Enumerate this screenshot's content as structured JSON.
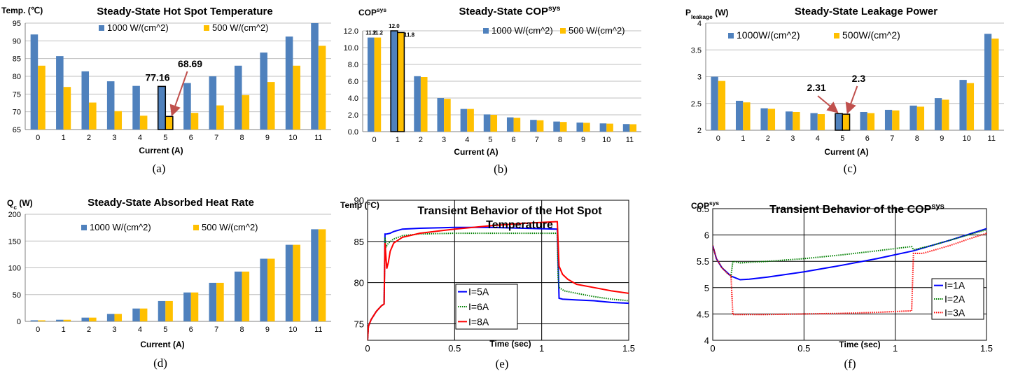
{
  "chart_data": [
    {
      "type": "bar",
      "title": "Steady-State Hot Spot Temperature",
      "ylabel": "Temp. (℃)",
      "xlabel": "Current (A)",
      "caption": "(a)",
      "categories": [
        "0",
        "1",
        "2",
        "3",
        "4",
        "5",
        "6",
        "7",
        "8",
        "9",
        "10",
        "11"
      ],
      "ylim": [
        65,
        95
      ],
      "yticks": [
        "65",
        "70",
        "75",
        "80",
        "85",
        "90",
        "95"
      ],
      "grid": true,
      "legend_position": "top",
      "series": [
        {
          "name": "1000 W/(cm^2)",
          "color": "#4F81BD",
          "values": [
            91.8,
            85.7,
            81.4,
            78.6,
            77.3,
            77.16,
            78.1,
            80.0,
            83.0,
            86.7,
            91.2,
            95.0
          ]
        },
        {
          "name": "500 W/(cm^2)",
          "color": "#FFC000",
          "values": [
            83.0,
            77.0,
            72.6,
            70.2,
            68.9,
            68.69,
            69.7,
            71.8,
            74.7,
            78.4,
            83.0,
            88.6
          ]
        }
      ],
      "highlight_index": 5,
      "annotations": [
        {
          "text": "77.16",
          "series": 0,
          "index": 5
        },
        {
          "text": "68.69",
          "series": 1,
          "index": 5
        }
      ]
    },
    {
      "type": "bar",
      "title": "Steady-State COP",
      "title_sup": "sys",
      "ylabel": "COP",
      "ylabel_sup": "sys",
      "xlabel": "Current (A)",
      "caption": "(b)",
      "categories": [
        "0",
        "1",
        "2",
        "3",
        "4",
        "5",
        "6",
        "7",
        "8",
        "9",
        "10",
        "11"
      ],
      "ylim": [
        0,
        12
      ],
      "yticks": [
        "0.0",
        "2.0",
        "4.0",
        "6.0",
        "8.0",
        "10.0",
        "12.0"
      ],
      "grid": true,
      "legend_position": "top-right",
      "series": [
        {
          "name": "1000 W/(cm^2)",
          "color": "#4F81BD",
          "values": [
            11.2,
            12.0,
            6.6,
            4.0,
            2.7,
            2.05,
            1.7,
            1.4,
            1.2,
            1.08,
            0.98,
            0.9
          ]
        },
        {
          "name": "500 W/(cm^2)",
          "color": "#FFC000",
          "values": [
            11.2,
            11.8,
            6.5,
            3.9,
            2.7,
            2.0,
            1.65,
            1.35,
            1.15,
            1.05,
            0.95,
            0.88
          ]
        }
      ],
      "highlight_index": 1,
      "data_labels": [
        {
          "text": "11.2",
          "series": 0,
          "index": 0
        },
        {
          "text": "11.2",
          "series": 1,
          "index": 0
        },
        {
          "text": "12.0",
          "series": 0,
          "index": 1
        },
        {
          "text": "11.8",
          "series": 1,
          "index": 1
        }
      ]
    },
    {
      "type": "bar",
      "title": "Steady-State Leakage Power",
      "ylabel": "P",
      "ylabel_sub": "leakage",
      "ylabel_rest": " (W)",
      "xlabel": "Current (A)",
      "caption": "(c)",
      "categories": [
        "0",
        "1",
        "2",
        "3",
        "4",
        "5",
        "6",
        "7",
        "8",
        "9",
        "10",
        "11"
      ],
      "ylim": [
        2,
        4
      ],
      "yticks": [
        "2",
        "2.5",
        "3",
        "3.5",
        "4"
      ],
      "grid": true,
      "legend_position": "top",
      "series": [
        {
          "name": "1000W/(cm^2)",
          "color": "#4F81BD",
          "values": [
            3.0,
            2.55,
            2.41,
            2.35,
            2.32,
            2.31,
            2.34,
            2.38,
            2.46,
            2.6,
            2.94,
            3.8
          ]
        },
        {
          "name": "500W/(cm^2)",
          "color": "#FFC000",
          "values": [
            2.92,
            2.52,
            2.4,
            2.34,
            2.3,
            2.3,
            2.32,
            2.37,
            2.44,
            2.57,
            2.88,
            3.71
          ]
        }
      ],
      "highlight_index": 5,
      "annotations": [
        {
          "text": "2.31",
          "series": 0,
          "index": 5
        },
        {
          "text": "2.3",
          "series": 1,
          "index": 5
        }
      ]
    },
    {
      "type": "bar",
      "title": "Steady-State Absorbed Heat Rate",
      "ylabel": "Q",
      "ylabel_sub": "c",
      "ylabel_rest": " (W)",
      "xlabel": "Current (A)",
      "caption": "(d)",
      "categories": [
        "0",
        "1",
        "2",
        "3",
        "4",
        "5",
        "6",
        "7",
        "8",
        "9",
        "10",
        "11"
      ],
      "ylim": [
        0,
        200
      ],
      "yticks": [
        "0",
        "50",
        "100",
        "150",
        "200"
      ],
      "grid": true,
      "legend_position": "top",
      "series": [
        {
          "name": "1000 W/(cm^2)",
          "color": "#4F81BD",
          "values": [
            2,
            3,
            7,
            14,
            24,
            38,
            54,
            72,
            93,
            117,
            143,
            172
          ]
        },
        {
          "name": "500 W/(cm^2)",
          "color": "#FFC000",
          "values": [
            2,
            3,
            7,
            14,
            24,
            38,
            54,
            72,
            93,
            117,
            143,
            172
          ]
        }
      ]
    },
    {
      "type": "line",
      "title_line1": "Transient Behavior of the Hot Spot",
      "title_line2": "Temperature",
      "ylabel": "Temp (°C)",
      "xlabel": "Time (sec)",
      "caption": "(e)",
      "xlim": [
        0,
        1.5
      ],
      "ylim": [
        73,
        90
      ],
      "xticks": [
        "0",
        "0.5",
        "1",
        "1.5"
      ],
      "yticks": [
        "75",
        "80",
        "85",
        "90"
      ],
      "grid": true,
      "legend_position": "center-left",
      "series": [
        {
          "name": "I=5A",
          "color": "#0000FF",
          "style": "solid",
          "x": [
            0,
            0.005,
            0.02,
            0.05,
            0.08,
            0.095,
            0.1,
            0.11,
            0.13,
            0.15,
            0.2,
            0.3,
            0.5,
            0.7,
            0.9,
            1.09,
            1.1,
            1.12,
            1.2,
            1.3,
            1.4,
            1.5
          ],
          "y": [
            73.0,
            74.7,
            75.5,
            76.5,
            77.2,
            77.4,
            85.9,
            85.9,
            86.0,
            86.2,
            86.5,
            86.6,
            86.7,
            86.7,
            86.6,
            86.5,
            78.1,
            78.0,
            77.9,
            77.8,
            77.6,
            77.5
          ]
        },
        {
          "name": "I=6A",
          "color": "#008000",
          "style": "dotted",
          "x": [
            0,
            0.005,
            0.02,
            0.05,
            0.08,
            0.095,
            0.1,
            0.105,
            0.12,
            0.15,
            0.2,
            0.3,
            0.5,
            0.7,
            0.9,
            1.09,
            1.095,
            1.1,
            1.13,
            1.2,
            1.3,
            1.4,
            1.5
          ],
          "y": [
            73.0,
            74.7,
            75.5,
            76.5,
            77.2,
            77.4,
            85.5,
            84.3,
            84.8,
            85.3,
            85.7,
            85.9,
            86.0,
            86.0,
            86.0,
            86.0,
            80.5,
            79.4,
            79.0,
            78.7,
            78.3,
            78.0,
            77.8
          ]
        },
        {
          "name": "I=8A",
          "color": "#FF0000",
          "style": "solid",
          "x": [
            0,
            0.005,
            0.02,
            0.05,
            0.08,
            0.095,
            0.1,
            0.11,
            0.12,
            0.13,
            0.15,
            0.2,
            0.3,
            0.5,
            0.7,
            0.9,
            1.08,
            1.09,
            1.1,
            1.12,
            1.15,
            1.2,
            1.3,
            1.4,
            1.5
          ],
          "y": [
            73.0,
            74.7,
            75.5,
            76.5,
            77.2,
            77.4,
            84.8,
            81.7,
            82.5,
            83.8,
            84.8,
            85.5,
            86.0,
            86.5,
            86.9,
            87.2,
            87.4,
            87.4,
            82.0,
            81.0,
            80.4,
            79.8,
            79.4,
            79.0,
            78.7
          ]
        }
      ]
    },
    {
      "type": "line",
      "title": "Transient Behavior of the COP",
      "title_sup": "sys",
      "ylabel": "COP",
      "ylabel_sup": "sys",
      "xlabel": "Time (sec)",
      "caption": "(f)",
      "xlim": [
        0,
        1.5
      ],
      "ylim": [
        4,
        6.5
      ],
      "xticks": [
        "0",
        "0.5",
        "1",
        "1.5"
      ],
      "yticks": [
        "4",
        "4.5",
        "5",
        "5.5",
        "6",
        "6.5"
      ],
      "grid": true,
      "legend_position": "right",
      "series": [
        {
          "name": "I=1A",
          "color": "#0000FF",
          "style": "solid",
          "x": [
            0,
            0.02,
            0.05,
            0.1,
            0.15,
            0.2,
            0.3,
            0.5,
            0.7,
            0.9,
            1.1,
            1.3,
            1.5
          ],
          "y": [
            5.8,
            5.55,
            5.38,
            5.22,
            5.15,
            5.16,
            5.2,
            5.3,
            5.42,
            5.55,
            5.7,
            5.9,
            6.12
          ]
        },
        {
          "name": "I=2A",
          "color": "#008000",
          "style": "dotted",
          "x": [
            0,
            0.02,
            0.05,
            0.08,
            0.1,
            0.11,
            0.15,
            0.3,
            0.5,
            0.7,
            0.9,
            1.09,
            1.1,
            1.2,
            1.3,
            1.4,
            1.5
          ],
          "y": [
            5.8,
            5.55,
            5.38,
            5.27,
            5.22,
            5.5,
            5.47,
            5.5,
            5.55,
            5.62,
            5.7,
            5.78,
            5.72,
            5.8,
            5.9,
            6.0,
            6.1
          ]
        },
        {
          "name": "I=3A",
          "color": "#FF0000",
          "style": "dotted",
          "x": [
            0,
            0.02,
            0.05,
            0.08,
            0.1,
            0.11,
            0.3,
            0.5,
            0.7,
            0.9,
            1.09,
            1.1,
            1.15,
            1.2,
            1.3,
            1.4,
            1.5
          ],
          "y": [
            5.8,
            5.55,
            5.38,
            5.27,
            5.22,
            4.49,
            4.49,
            4.5,
            4.51,
            4.53,
            4.56,
            5.65,
            5.65,
            5.7,
            5.8,
            5.92,
            6.03
          ]
        }
      ]
    }
  ]
}
